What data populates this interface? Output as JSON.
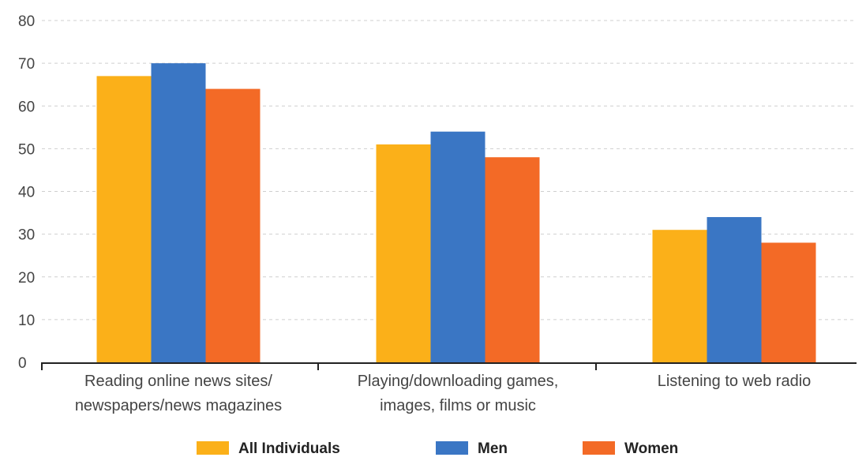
{
  "chart_data": {
    "type": "bar",
    "title": "",
    "xlabel": "",
    "ylabel": "",
    "categories": [
      [
        "Reading online news sites/",
        "newspapers/news magazines"
      ],
      [
        "Playing/downloading games,",
        "images, films or music"
      ],
      [
        "Listening to web radio"
      ]
    ],
    "series": [
      {
        "name": "All Individuals",
        "color": "#FBB019",
        "values": [
          67,
          51,
          31
        ]
      },
      {
        "name": "Men",
        "color": "#3A76C4",
        "values": [
          70,
          54,
          34
        ]
      },
      {
        "name": "Women",
        "color": "#F36A26",
        "values": [
          64,
          48,
          28
        ]
      }
    ],
    "ylim": [
      0,
      80
    ],
    "yticks": [
      "0",
      "10",
      "20",
      "30",
      "40",
      "50",
      "60",
      "70",
      "80"
    ],
    "grid": true,
    "legend_position": "bottom"
  }
}
